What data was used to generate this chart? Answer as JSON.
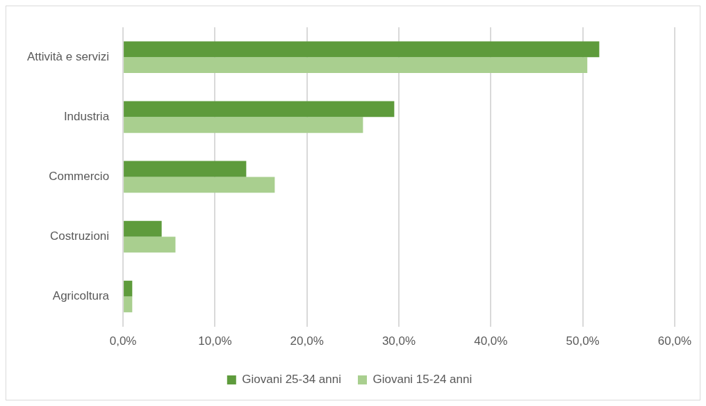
{
  "chart_data": {
    "type": "bar",
    "orientation": "horizontal",
    "categories": [
      "Attività e servizi",
      "Industria",
      "Commercio",
      "Costruzioni",
      "Agricoltura"
    ],
    "series": [
      {
        "name": "Giovani 25-34 anni",
        "color": "#5e9b3c",
        "values": [
          51.8,
          29.5,
          13.4,
          4.2,
          1.0
        ]
      },
      {
        "name": "Giovani 15-24 anni",
        "color": "#a9cf8f",
        "values": [
          50.5,
          26.1,
          16.5,
          5.7,
          1.0
        ]
      }
    ],
    "xlim": [
      0,
      60
    ],
    "xticks": [
      {
        "value": 0,
        "label": "0,0%"
      },
      {
        "value": 10,
        "label": "10,0%"
      },
      {
        "value": 20,
        "label": "20,0%"
      },
      {
        "value": 30,
        "label": "30,0%"
      },
      {
        "value": 40,
        "label": "40,0%"
      },
      {
        "value": 50,
        "label": "50,0%"
      },
      {
        "value": 60,
        "label": "60,0%"
      }
    ],
    "grid": "x",
    "legend": "bottom"
  }
}
